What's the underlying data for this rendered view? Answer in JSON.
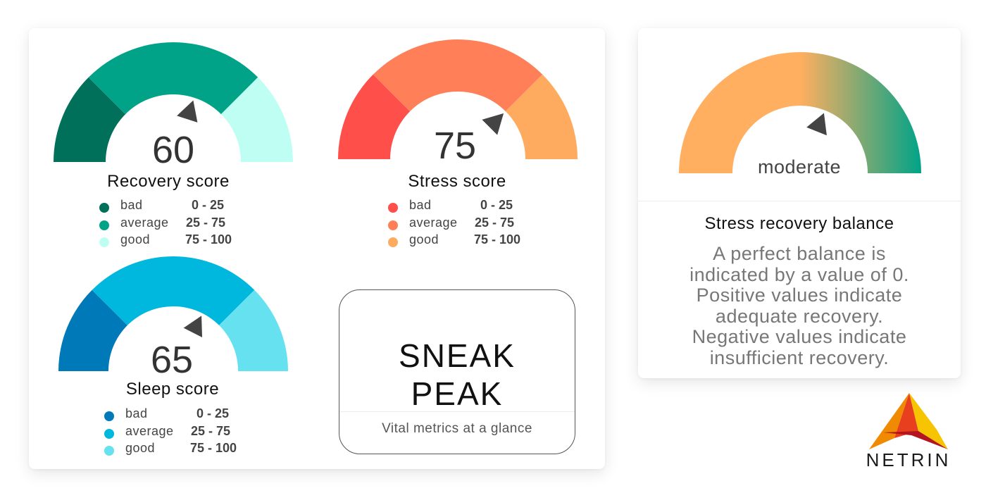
{
  "gauges": [
    {
      "key": "recovery",
      "title": "Recovery score",
      "value": "60",
      "pointer_value": 60,
      "segment_colors": [
        "#00705a",
        "#00a388",
        "#bffff3"
      ],
      "legend": [
        {
          "label": "bad",
          "range": "0 - 25",
          "color": "#00705a"
        },
        {
          "label": "average",
          "range": "25 - 75",
          "color": "#00a388"
        },
        {
          "label": "good",
          "range": "75 - 100",
          "color": "#bffff3"
        }
      ]
    },
    {
      "key": "stress",
      "title": "Stress score",
      "value": "75",
      "pointer_value": 75,
      "segment_colors": [
        "#ff4f4a",
        "#ff7f59",
        "#ffab5f"
      ],
      "legend": [
        {
          "label": "bad",
          "range": "0 - 25",
          "color": "#ff4f4a"
        },
        {
          "label": "average",
          "range": "25 - 75",
          "color": "#ff7f59"
        },
        {
          "label": "good",
          "range": "75 - 100",
          "color": "#ffab5f"
        }
      ]
    },
    {
      "key": "sleep",
      "title": "Sleep score",
      "value": "65",
      "pointer_value": 65,
      "segment_colors": [
        "#0079b8",
        "#00b7dd",
        "#66e1f0"
      ],
      "legend": [
        {
          "label": "bad",
          "range": "0 - 25",
          "color": "#0079b8"
        },
        {
          "label": "average",
          "range": "25 - 75",
          "color": "#00b7dd"
        },
        {
          "label": "good",
          "range": "75 - 100",
          "color": "#66e1f0"
        }
      ]
    }
  ],
  "sneak_peak": {
    "title_line1": "SNEAK",
    "title_line2": "PEAK",
    "tagline": "Vital metrics at a glance"
  },
  "balance": {
    "status": "moderate",
    "pointer_value": 62,
    "gradient_colors": [
      "#ffaf5f",
      "#ffaf5f",
      "#00a388"
    ],
    "title": "Stress recovery balance",
    "description_lines": [
      "A perfect balance is",
      "indicated by a value of 0.",
      "Positive values indicate",
      "adequate recovery.",
      "Negative values indicate",
      "insufficient recovery."
    ]
  },
  "brand": {
    "name": "NETRIN",
    "logo_colors": [
      "#f08a00",
      "#e8401e",
      "#f6c400",
      "#b3141e"
    ]
  },
  "pointer_color": "#444444"
}
